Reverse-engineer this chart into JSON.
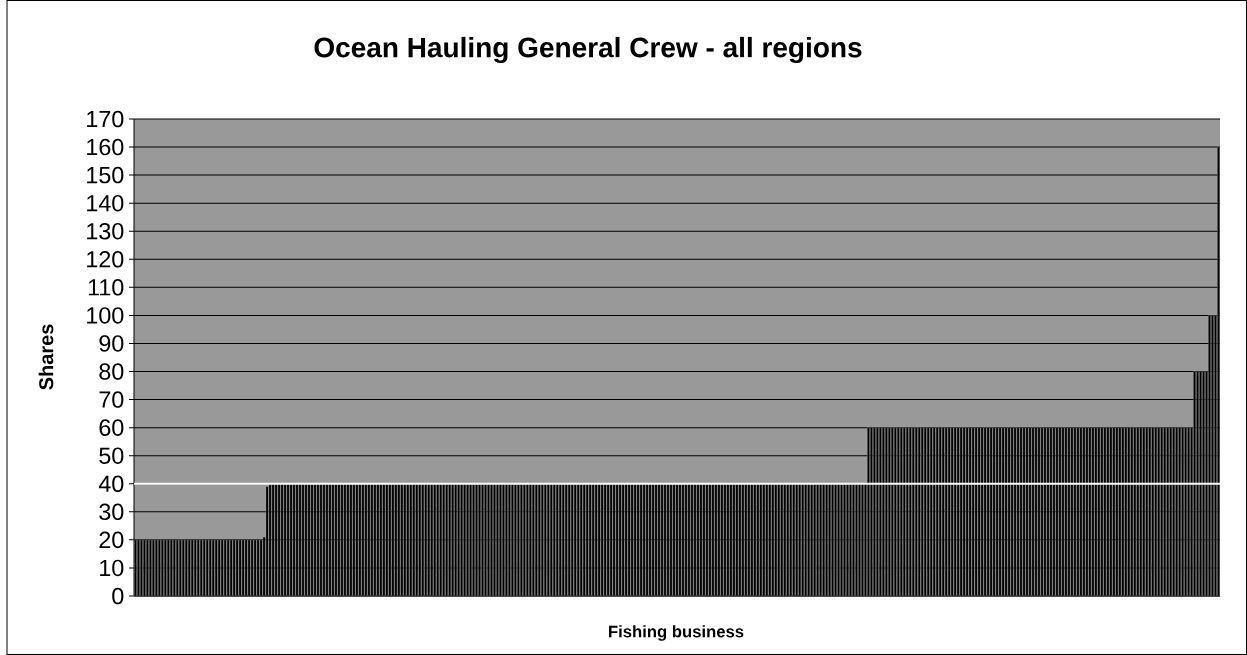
{
  "chart_data": {
    "type": "bar",
    "title": "Ocean Hauling General Crew - all regions",
    "xlabel": "Fishing business",
    "ylabel": "Shares",
    "categories": [
      null,
      null,
      null,
      null,
      null,
      null,
      null,
      null,
      null,
      null,
      null,
      null,
      null,
      null,
      null,
      null,
      null,
      null,
      null,
      null,
      null,
      null,
      null,
      null,
      null,
      null,
      null,
      null,
      null,
      null,
      null,
      null,
      null,
      null,
      null,
      null,
      null,
      null,
      null,
      null,
      null,
      null,
      null,
      null,
      null,
      null,
      null,
      null,
      null,
      null,
      null,
      null,
      null,
      null,
      null,
      null,
      null,
      null,
      null,
      null,
      null,
      null,
      null,
      null,
      null,
      null,
      null,
      null,
      null,
      null,
      null,
      null,
      null,
      null,
      null,
      null,
      null,
      null,
      null,
      null,
      null,
      null,
      null,
      null,
      null,
      null,
      null,
      null,
      null,
      null,
      null,
      null,
      null,
      null,
      null,
      null,
      null,
      null,
      null,
      null,
      null,
      null,
      null,
      null,
      null,
      null,
      null,
      null,
      null,
      null,
      null,
      null,
      null,
      null,
      null,
      null,
      null,
      null,
      null,
      null,
      null,
      null,
      null,
      null,
      null,
      null,
      null,
      null,
      null,
      null,
      null,
      null,
      null,
      null,
      null,
      null,
      null,
      null,
      null,
      null,
      null,
      null,
      null,
      null,
      null,
      null,
      null,
      null,
      null,
      null,
      null,
      null,
      null,
      null,
      null,
      null,
      null,
      null,
      null,
      null,
      null,
      null,
      null,
      null,
      null,
      null,
      null,
      null,
      null,
      null,
      null,
      null,
      null,
      null,
      null,
      null,
      null,
      null,
      null,
      null,
      null,
      null,
      null,
      null,
      null,
      null,
      null,
      null,
      null,
      null,
      null,
      null,
      null,
      null,
      null,
      null,
      null,
      null,
      null,
      null,
      null,
      null,
      null,
      null,
      null,
      null,
      null,
      null,
      null,
      null,
      null,
      null,
      null,
      null,
      null,
      null,
      null,
      null,
      null,
      null,
      null,
      null,
      null,
      null,
      null,
      null,
      null,
      null,
      null,
      null,
      null,
      null,
      null,
      null,
      null,
      null,
      null,
      null,
      null,
      null,
      null,
      null,
      null,
      null,
      null,
      null,
      null,
      null,
      null,
      null,
      null,
      null,
      null,
      null,
      null,
      null,
      null,
      null,
      null,
      null,
      null,
      null,
      null,
      null,
      null,
      null,
      null,
      null,
      null,
      null,
      null,
      null,
      null,
      null,
      null,
      null,
      null,
      null,
      null,
      null,
      null,
      null,
      null,
      null,
      null,
      null,
      null,
      null,
      null,
      null,
      null,
      null,
      null,
      null,
      null,
      null,
      null,
      null,
      null,
      null,
      null,
      null,
      null,
      null,
      null,
      null,
      null,
      null,
      null,
      null,
      null,
      null,
      null,
      null,
      null,
      null,
      null,
      null,
      null,
      null,
      null,
      null,
      null,
      null,
      null,
      null,
      null,
      null,
      null,
      null,
      null,
      null,
      null,
      null,
      null,
      null,
      null,
      null,
      null,
      null,
      null,
      null,
      null,
      null,
      null,
      null,
      null,
      null,
      null,
      null,
      null,
      null,
      null,
      null,
      null,
      null,
      null,
      null,
      null,
      null,
      null,
      null,
      null
    ],
    "values": [
      20,
      20,
      20,
      20,
      20,
      20,
      20,
      20,
      20,
      20,
      20,
      20,
      20,
      20,
      20,
      20,
      20,
      20,
      20,
      20,
      20,
      20,
      20,
      20,
      20,
      20,
      20,
      20,
      20,
      20,
      20,
      20,
      20,
      20,
      20,
      20,
      20,
      20,
      20,
      20,
      20,
      20,
      20,
      21,
      39,
      40,
      40,
      40,
      40,
      40,
      40,
      40,
      40,
      40,
      40,
      40,
      40,
      40,
      40,
      40,
      40,
      40,
      40,
      40,
      40,
      40,
      40,
      40,
      40,
      40,
      40,
      40,
      40,
      40,
      40,
      40,
      40,
      40,
      40,
      40,
      40,
      40,
      40,
      40,
      40,
      40,
      40,
      40,
      40,
      40,
      40,
      40,
      40,
      40,
      40,
      40,
      40,
      40,
      40,
      40,
      40,
      40,
      40,
      40,
      40,
      40,
      40,
      40,
      40,
      40,
      40,
      40,
      40,
      40,
      40,
      40,
      40,
      40,
      40,
      40,
      40,
      40,
      40,
      40,
      40,
      40,
      40,
      40,
      40,
      40,
      40,
      40,
      40,
      40,
      40,
      40,
      40,
      40,
      40,
      40,
      40,
      40,
      40,
      40,
      40,
      40,
      40,
      40,
      40,
      40,
      40,
      40,
      40,
      40,
      40,
      40,
      40,
      40,
      40,
      40,
      40,
      40,
      40,
      40,
      40,
      40,
      40,
      40,
      40,
      40,
      40,
      40,
      40,
      40,
      40,
      40,
      40,
      40,
      40,
      40,
      40,
      40,
      40,
      40,
      40,
      40,
      40,
      40,
      40,
      40,
      40,
      40,
      40,
      40,
      40,
      40,
      40,
      40,
      40,
      40,
      40,
      40,
      40,
      40,
      40,
      40,
      40,
      40,
      40,
      40,
      40,
      40,
      40,
      40,
      40,
      40,
      40,
      40,
      40,
      40,
      40,
      40,
      40,
      40,
      40,
      40,
      40,
      40,
      40,
      40,
      40,
      40,
      40,
      40,
      40,
      40,
      40,
      40,
      40,
      40,
      40,
      40,
      40,
      40,
      40,
      60,
      60,
      60,
      60,
      60,
      60,
      60,
      60,
      60,
      60,
      60,
      60,
      60,
      60,
      60,
      60,
      60,
      60,
      60,
      60,
      60,
      60,
      60,
      60,
      60,
      60,
      60,
      60,
      60,
      60,
      60,
      60,
      60,
      60,
      60,
      60,
      60,
      60,
      60,
      60,
      60,
      60,
      60,
      60,
      60,
      60,
      60,
      60,
      60,
      60,
      60,
      60,
      60,
      60,
      60,
      60,
      60,
      60,
      60,
      60,
      60,
      60,
      60,
      60,
      60,
      60,
      60,
      60,
      60,
      60,
      60,
      60,
      60,
      60,
      60,
      60,
      60,
      60,
      60,
      60,
      60,
      60,
      60,
      60,
      60,
      60,
      60,
      60,
      60,
      60,
      60,
      60,
      60,
      60,
      60,
      60,
      60,
      60,
      60,
      60,
      60,
      60,
      60,
      60,
      60,
      60,
      60,
      60,
      60,
      80,
      80,
      80,
      80,
      80,
      100,
      100,
      100,
      160
    ],
    "color": "#000000",
    "ylim": [
      0,
      170
    ],
    "yticks": [
      0,
      10,
      20,
      30,
      40,
      50,
      60,
      70,
      80,
      90,
      100,
      110,
      120,
      130,
      140,
      150,
      160,
      170
    ],
    "grid": "y",
    "tick_labels": "y",
    "ref_lines": [
      {
        "axis": "y",
        "value": 40,
        "color": "#ffffff"
      }
    ]
  }
}
